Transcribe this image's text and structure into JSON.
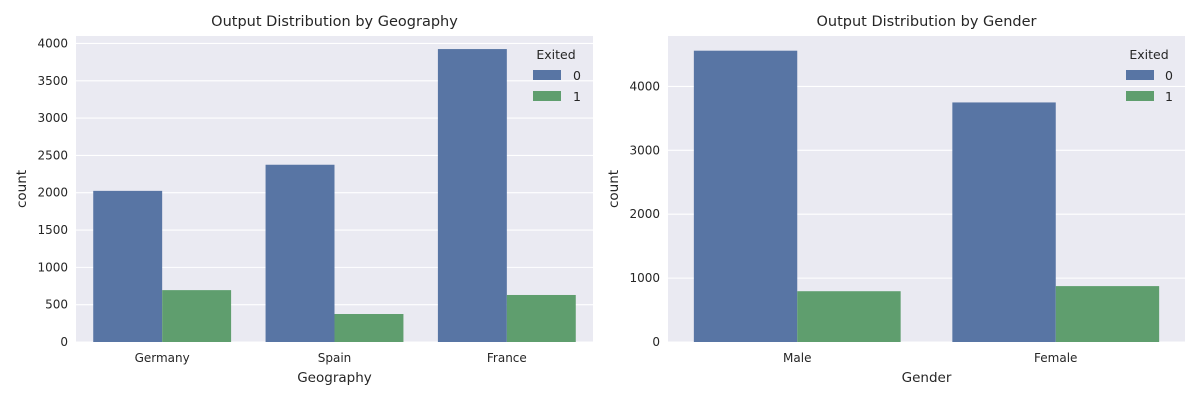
{
  "colors": {
    "background": "#eaeaf2",
    "grid": "#ffffff",
    "series_0": "#5875a4",
    "series_1": "#5f9e6e"
  },
  "chart_data": [
    {
      "type": "bar",
      "title": "Output Distribution by Geography",
      "xlabel": "Geography",
      "ylabel": "count",
      "categories": [
        "Germany",
        "Spain",
        "France"
      ],
      "series": [
        {
          "name": "0",
          "values": [
            2025,
            2375,
            3925
          ]
        },
        {
          "name": "1",
          "values": [
            695,
            375,
            630
          ]
        }
      ],
      "ylim": [
        0,
        4100
      ],
      "yticks": [
        0,
        500,
        1000,
        1500,
        2000,
        2500,
        3000,
        3500,
        4000
      ],
      "legend_title": "Exited",
      "legend_position": "top-right",
      "grid": true
    },
    {
      "type": "bar",
      "title": "Output Distribution by Gender",
      "xlabel": "Gender",
      "ylabel": "count",
      "categories": [
        "Male",
        "Female"
      ],
      "series": [
        {
          "name": "0",
          "values": [
            4560,
            3750
          ]
        },
        {
          "name": "1",
          "values": [
            795,
            875
          ]
        }
      ],
      "ylim": [
        0,
        4790
      ],
      "yticks": [
        0,
        1000,
        2000,
        3000,
        4000
      ],
      "legend_title": "Exited",
      "legend_position": "top-right",
      "grid": true
    }
  ]
}
